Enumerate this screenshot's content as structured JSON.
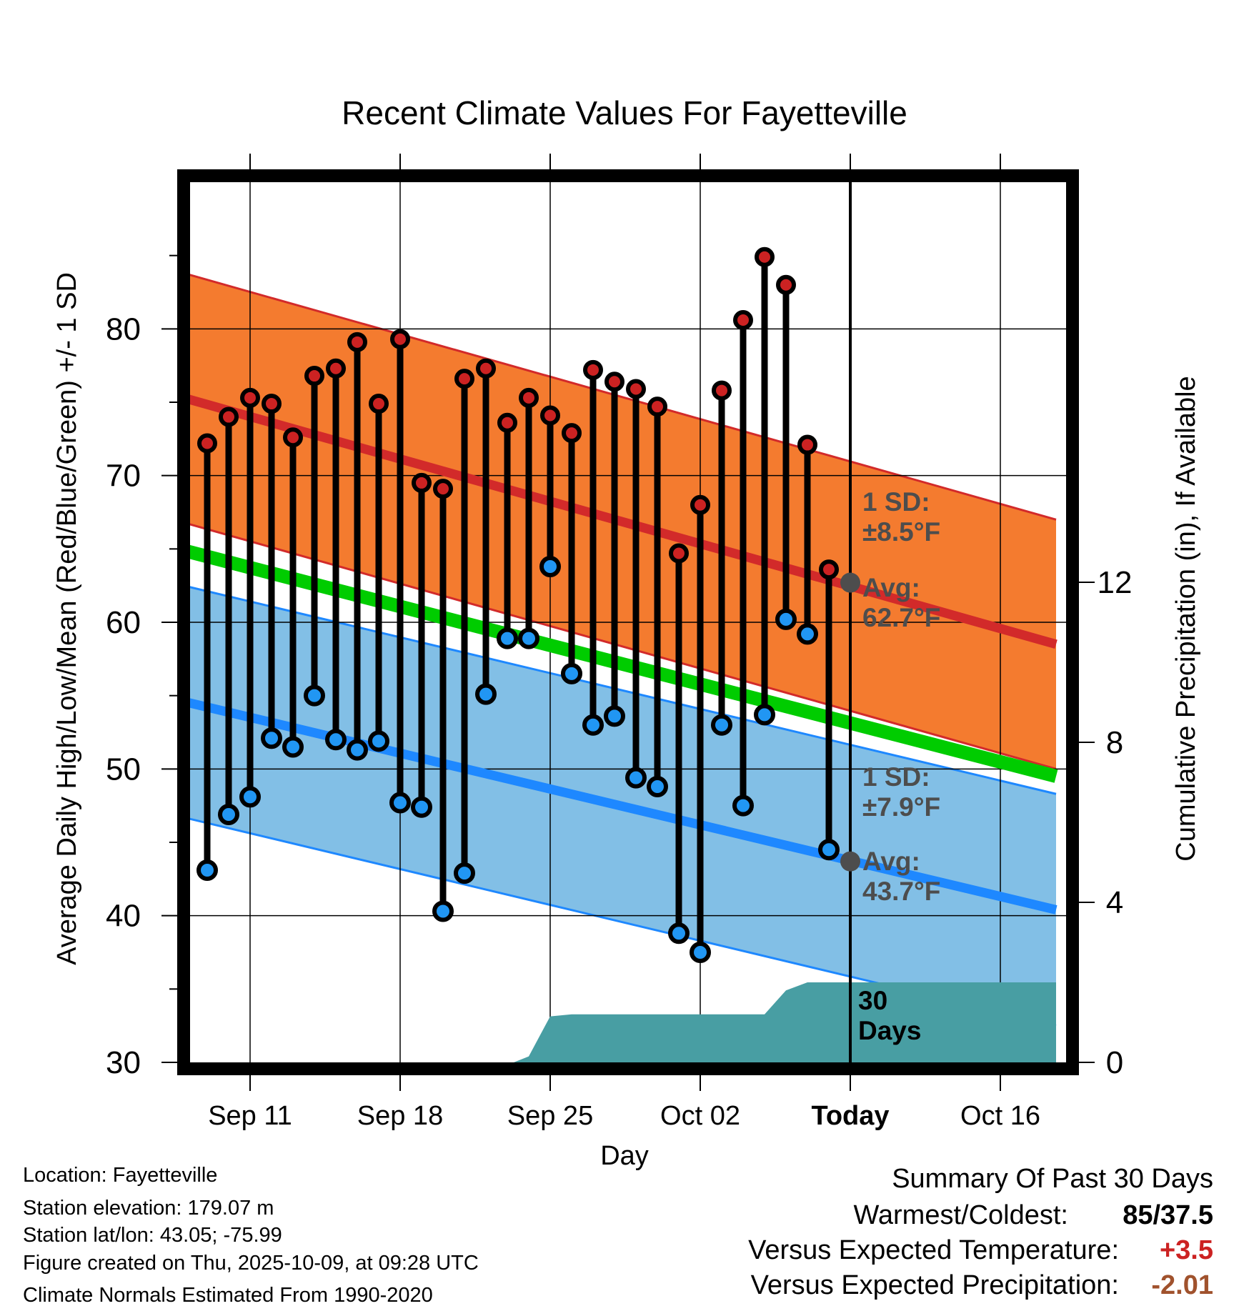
{
  "chart_data": {
    "type": "line",
    "title": "Recent Climate Values For Fayetteville",
    "xlabel": "Day",
    "ylabel": "Average Daily High/Low/Mean (Red/Blue/Green) +/- 1 SD",
    "y2label": "Cumulative Precipitation (in), If Available",
    "ylim": [
      30,
      90
    ],
    "y2lim": [
      0,
      22
    ],
    "xlim": [
      -3.1,
      37.6
    ],
    "x_tick_labels": [
      {
        "day": 0,
        "label": "Sep 11"
      },
      {
        "day": 7,
        "label": "Sep 18"
      },
      {
        "day": 14,
        "label": "Sep 25"
      },
      {
        "day": 21,
        "label": "Oct 02"
      },
      {
        "day": 28,
        "label": "Today"
      },
      {
        "day": 35,
        "label": "Oct 16"
      }
    ],
    "y_ticks": [
      30,
      40,
      50,
      60,
      70,
      80
    ],
    "y2_ticks": [
      0,
      4,
      8,
      12
    ],
    "days": [
      -2,
      -1,
      0,
      1,
      2,
      3,
      4,
      5,
      6,
      7,
      8,
      9,
      10,
      11,
      12,
      13,
      14,
      15,
      16,
      17,
      18,
      19,
      20,
      21,
      22,
      23,
      24,
      25,
      26,
      27
    ],
    "highs": [
      72.2,
      74.0,
      75.3,
      74.9,
      72.6,
      76.8,
      77.3,
      79.1,
      74.9,
      79.3,
      69.5,
      69.1,
      76.6,
      77.3,
      73.6,
      75.3,
      74.1,
      72.9,
      77.2,
      76.4,
      75.9,
      74.7,
      64.7,
      68.0,
      75.8,
      80.6,
      84.9,
      83.0,
      72.1,
      63.6
    ],
    "lows": [
      43.1,
      46.9,
      48.1,
      52.1,
      51.5,
      55.0,
      52.0,
      51.3,
      51.9,
      47.7,
      47.4,
      40.3,
      42.9,
      55.1,
      58.9,
      58.9,
      63.8,
      56.5,
      53.0,
      53.6,
      49.4,
      48.8,
      38.8,
      37.5,
      53.0,
      47.5,
      53.7,
      60.2,
      59.2,
      44.5
    ],
    "normal_high": {
      "start": 75.3,
      "end": 58.5
    },
    "normal_high_sd": 8.5,
    "normal_low": {
      "start": 54.6,
      "end": 40.4
    },
    "normal_low_sd": 7.9,
    "normal_mean": {
      "start": 64.9,
      "end": 49.5
    },
    "precipitation": [
      {
        "day": 12.3,
        "value": 0
      },
      {
        "day": 13.0,
        "value": 0.15
      },
      {
        "day": 14.0,
        "value": 1.15
      },
      {
        "day": 15.0,
        "value": 1.2
      },
      {
        "day": 24.0,
        "value": 1.2
      },
      {
        "day": 25.0,
        "value": 1.8
      },
      {
        "day": 26.0,
        "value": 2.0
      },
      {
        "day": 37.6,
        "value": 2.0
      }
    ],
    "today_markers": {
      "avg_high": 62.7,
      "avg_low": 43.7
    },
    "colors": {
      "high_band": "#f47b2f",
      "high_line": "#d22a2a",
      "low_band": "#82bfe6",
      "low_line": "#1e88ff",
      "mean_line": "#00cc00",
      "precip_fill": "#489ea3",
      "high_dot": "#cc2222",
      "low_dot": "#2196f3",
      "annot": "#4d4d4d"
    }
  },
  "annotations": {
    "high_sd_label": "1 SD:",
    "high_sd_value": "±8.5°F",
    "high_avg_label": "Avg:",
    "high_avg_value": "62.7°F",
    "low_sd_label": "1 SD:",
    "low_sd_value": "±7.9°F",
    "low_avg_label": "Avg:",
    "low_avg_value": "43.7°F",
    "precip_period_1": "30",
    "precip_period_2": "Days"
  },
  "info": {
    "location": "Location: Fayetteville",
    "elevation": "Station elevation: 179.07 m",
    "latlon": "Station lat/lon: 43.05; -75.99",
    "created": "Figure created on Thu, 2025-10-09, at 09:28 UTC",
    "normals": "Climate Normals Estimated From 1990-2020"
  },
  "summary": {
    "title": "Summary Of Past 30 Days",
    "warmest_label": "Warmest/Coldest:",
    "warmest_value": "85/37.5",
    "temp_label": "Versus Expected Temperature:",
    "temp_value": "+3.5",
    "precip_label": "Versus Expected Precipitation:",
    "precip_value": "-2.01"
  }
}
